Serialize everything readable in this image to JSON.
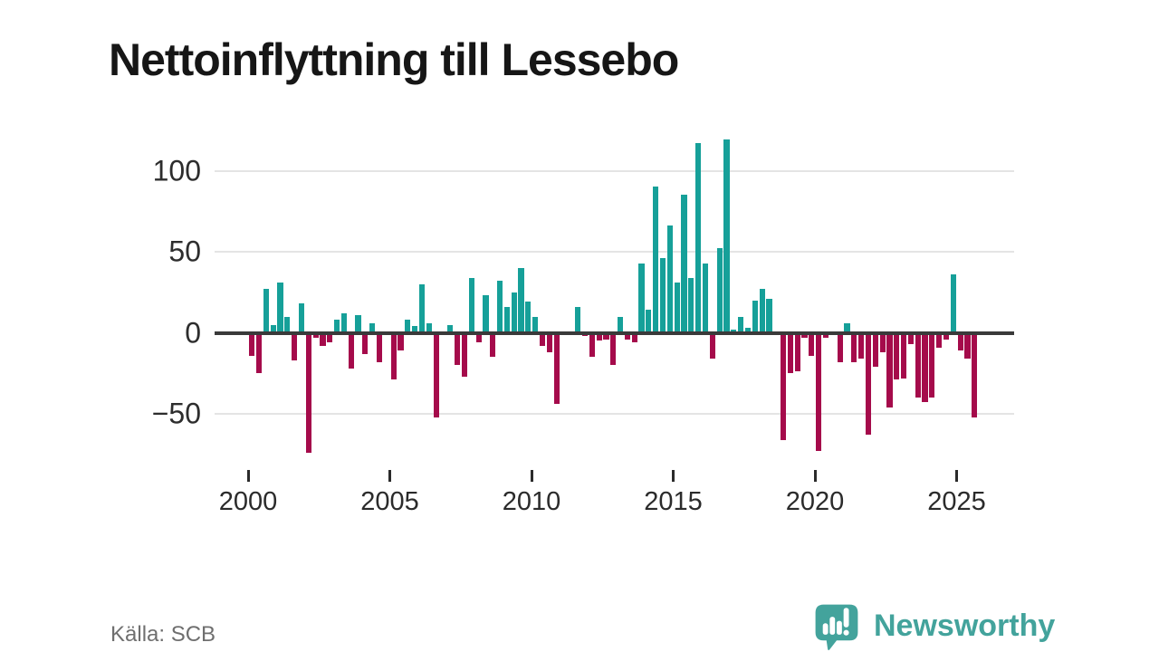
{
  "page": {
    "title": "Nettoinflyttning till Lessebo",
    "source": "Källa: SCB"
  },
  "brand": {
    "name": "Newsworthy",
    "icon": "newsworthy-speech-bubble-bar-chart-icon",
    "color": "#43a39c"
  },
  "chart_data": {
    "type": "bar",
    "title": "Nettoinflyttning till Lessebo",
    "period": "quarterly",
    "start": "2000-Q1",
    "end": "2025-Q3",
    "ylabel": "",
    "xlabel": "",
    "grid": "horizontal",
    "legend_position": "none",
    "y_axis": {
      "ticks": [
        100,
        50,
        0,
        -50
      ],
      "tick_labels": [
        "100",
        "50",
        "0",
        "−50"
      ],
      "gridlines": [
        100,
        50,
        -50
      ],
      "zero_line": true,
      "range": [
        -80,
        125
      ]
    },
    "x_axis": {
      "tick_labels": [
        "2000",
        "2005",
        "2010",
        "2015",
        "2020",
        "2025"
      ],
      "tick_years": [
        2000,
        2005,
        2010,
        2015,
        2020,
        2025
      ]
    },
    "colors": {
      "positive": "#16a099",
      "negative": "#a50b4b",
      "zero_line": "#3a3a3a",
      "gridline": "#e4e4e4"
    },
    "values_by_year": {
      "2000": [
        -14,
        -25,
        27,
        5
      ],
      "2001": [
        31,
        10,
        -17,
        18
      ],
      "2002": [
        -74,
        -3,
        -8,
        -6
      ],
      "2003": [
        8,
        12,
        -22,
        11
      ],
      "2004": [
        -13,
        6,
        -18,
        0
      ],
      "2005": [
        -29,
        -11,
        8,
        4
      ],
      "2006": [
        30,
        6,
        -52,
        0
      ],
      "2007": [
        5,
        -20,
        -27,
        34
      ],
      "2008": [
        -6,
        23,
        -15,
        32
      ],
      "2009": [
        16,
        25,
        40,
        19
      ],
      "2010": [
        10,
        -8,
        -12,
        -44
      ],
      "2011": [
        0,
        0,
        16,
        -2
      ],
      "2012": [
        -15,
        -5,
        -4,
        -20
      ],
      "2013": [
        10,
        -4,
        -6,
        43
      ],
      "2014": [
        14,
        90,
        46,
        66
      ],
      "2015": [
        31,
        85,
        34,
        117
      ],
      "2016": [
        43,
        -16,
        52,
        119
      ],
      "2017": [
        2,
        10,
        3,
        20
      ],
      "2018": [
        27,
        21,
        0,
        -66
      ],
      "2019": [
        -25,
        -24,
        -3,
        -14
      ],
      "2020": [
        -73,
        -3,
        0,
        -18
      ],
      "2021": [
        6,
        -18,
        -16,
        -63
      ],
      "2022": [
        -21,
        -12,
        -46,
        -29
      ],
      "2023": [
        -28,
        -7,
        -40,
        -43
      ],
      "2024": [
        -40,
        -9,
        -4,
        36
      ],
      "2025": [
        -11,
        -16,
        -52
      ]
    }
  }
}
